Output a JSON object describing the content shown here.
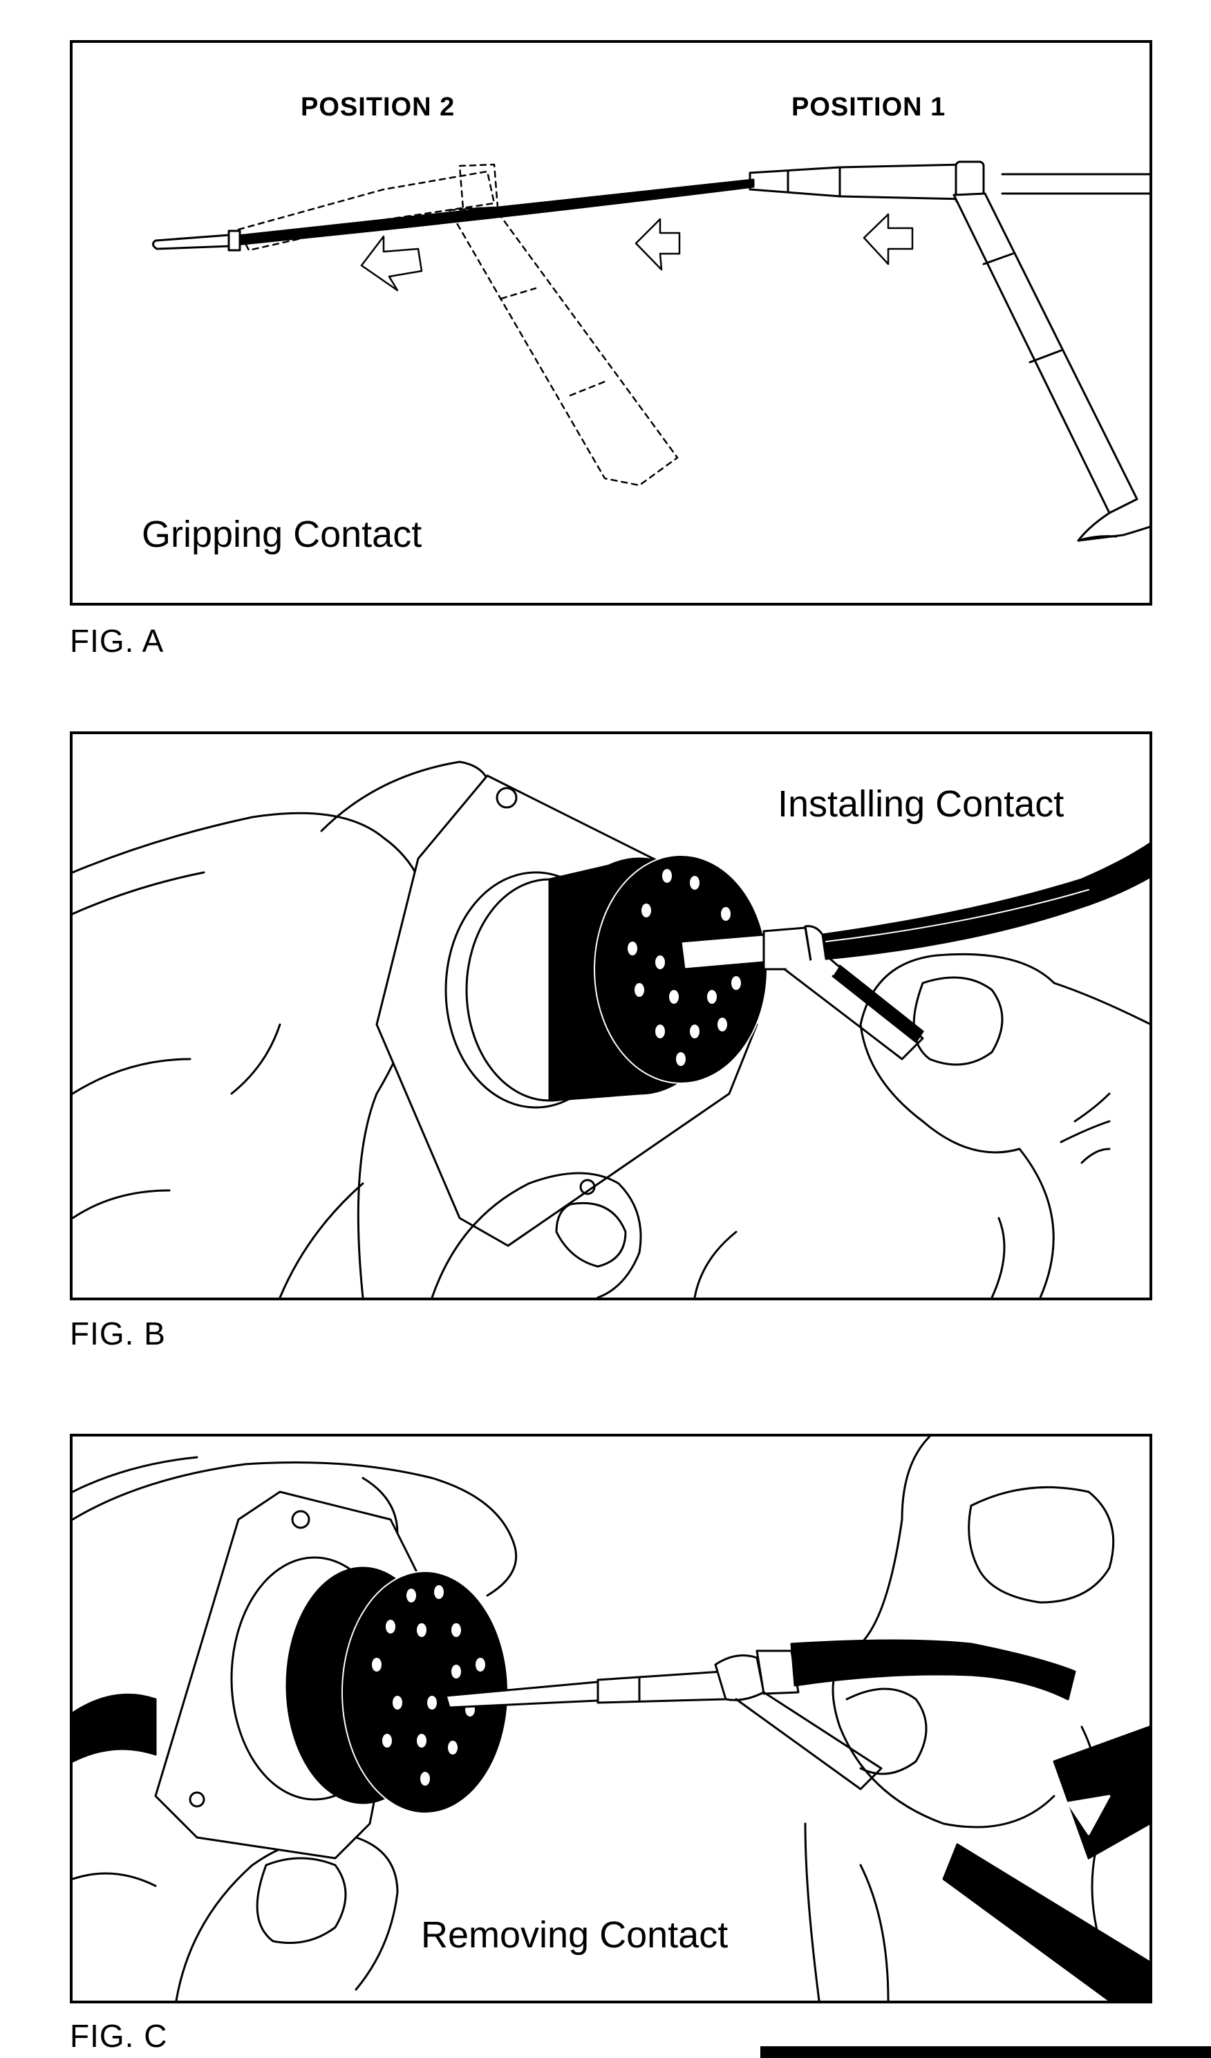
{
  "figures": {
    "a": {
      "label": "FIG. A",
      "caption": "Gripping Contact",
      "position_2": "POSITION 2",
      "position_1": "POSITION 1"
    },
    "b": {
      "label": "FIG. B",
      "caption": "Installing Contact"
    },
    "c": {
      "label": "FIG. C",
      "caption": "Removing Contact"
    }
  },
  "colors": {
    "ink": "#000000",
    "paper": "#ffffff"
  }
}
